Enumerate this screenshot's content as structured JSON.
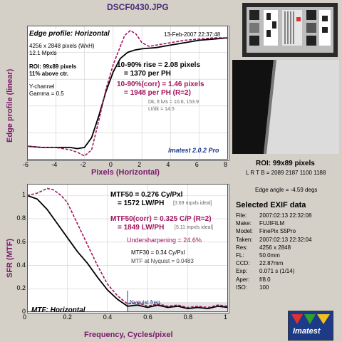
{
  "window": {
    "title": "DSCF0430.JPG"
  },
  "edge_panel": {
    "title": "Edge profile: Horizontal",
    "date": "13-Feb-2007 22:37:48",
    "info": [
      "4256 x 2848 pixels (WxH)",
      "12.1 Mpxls"
    ],
    "roi": [
      "ROI: 99x89 pixels",
      "11% above ctr."
    ],
    "channel": [
      "Y-channel",
      "Gamma = 0.5"
    ],
    "rise": [
      "10-90% rise = 2.08 pixels",
      "= 1370 per PH"
    ],
    "rise_corr": [
      "10-90%(corr) = 1.46 pixels",
      "= 1948 per PH  (R=2)"
    ],
    "dk": [
      "Dk, lt lvls = 10.6, 153.9",
      "Lt/dk = 14.5"
    ],
    "version": "Imatest 2.0.2 Pro",
    "ylabel": "Edge profile (linear)",
    "xlabel": "Pixels (Horizontal)"
  },
  "mtf_panel": {
    "title": "MTF: Horizontal",
    "mtf50": [
      "MTF50 = 0.276 Cy/Pxl",
      "= 1572 LW/PH"
    ],
    "mtf50_ideal": "[3.69 mpxls ideal]",
    "mtf50_corr": [
      "MTF50(corr) = 0.325 C/P  (R=2)",
      "= 1849 LW/PH"
    ],
    "mtf50_corr_ideal": "[5.11 mpxls ideal]",
    "undersharpening": "Undersharpening = 24.6%",
    "mtf30": "MTF30 = 0.34 Cy/Pxl",
    "nyquist_mtf": "MTF at Nyquist = 0.0483",
    "nyquist_label": "Nyquist freq.",
    "ylabel": "SFR (MTF)",
    "xlabel": "Frequency, Cycles/pixel"
  },
  "roi_info": {
    "title": "ROI: 99x89 pixels",
    "coords": "L R T B = 2089 2187  1100 1188",
    "edge_angle": "Edge angle = -4.59 degs"
  },
  "exif": {
    "title": "Selected EXIF data",
    "rows": [
      [
        "File:",
        "2007:02:13 22:32:08"
      ],
      [
        "Make:",
        "FUJIFILM"
      ],
      [
        "Model:",
        "FinePix S5Pro"
      ],
      [
        "Taken:",
        "2007:02:13 22:32:04"
      ],
      [
        "Res:",
        "4256 x 2848"
      ],
      [
        "FL:",
        "50.0mm"
      ],
      [
        "CCD:",
        "22.87mm"
      ],
      [
        "Exp:",
        "0.071 s  (1/14)"
      ],
      [
        "Aper:",
        "f/8.0"
      ],
      [
        "ISO:",
        "100"
      ]
    ]
  },
  "logo": {
    "text": "Imatest"
  },
  "colors": {
    "measured": "#000000",
    "corrected": "#a0155e",
    "label": "#7a1a6a",
    "fill_region": "#d0d0d0"
  },
  "chart_data": [
    {
      "type": "line",
      "title": "Edge profile: Horizontal",
      "xlabel": "Pixels (Horizontal)",
      "ylabel": "Edge profile (linear)",
      "xlim": [
        -6,
        8
      ],
      "ylim": [
        0,
        1.1
      ],
      "x_ticks": [
        -6,
        -4,
        -2,
        0,
        2,
        4,
        6,
        8
      ],
      "grid": true,
      "series": [
        {
          "style": "solid",
          "x": [
            -6,
            -5,
            -4,
            -3,
            -2.5,
            -2,
            -1.5,
            -1,
            -0.5,
            0,
            0.5,
            1,
            1.5,
            2,
            3,
            4,
            5,
            6,
            7,
            8
          ],
          "y": [
            0.11,
            0.1,
            0.1,
            0.1,
            0.09,
            0.1,
            0.18,
            0.36,
            0.56,
            0.72,
            0.83,
            0.88,
            0.9,
            0.91,
            0.92,
            0.94,
            0.96,
            0.98,
            0.99,
            1.0
          ]
        },
        {
          "style": "dashed",
          "x": [
            -6,
            -5,
            -4,
            -3,
            -2.5,
            -2,
            -1.5,
            -1,
            -0.5,
            0,
            0.5,
            0.8,
            1.2,
            1.6,
            2,
            2.5,
            3,
            4,
            5,
            6,
            7,
            8
          ],
          "y": [
            0.11,
            0.1,
            0.1,
            0.08,
            0.06,
            0.03,
            0.08,
            0.32,
            0.58,
            0.78,
            0.93,
            1.02,
            1.06,
            1.03,
            0.96,
            0.93,
            0.94,
            0.96,
            0.98,
            0.99,
            1.0,
            1.0
          ]
        }
      ]
    },
    {
      "type": "line",
      "title": "MTF: Horizontal",
      "xlabel": "Frequency, Cycles/pixel",
      "ylabel": "SFR (MTF)",
      "xlim": [
        0,
        1
      ],
      "ylim": [
        0,
        1.1
      ],
      "x_ticks": [
        0,
        0.2,
        0.4,
        0.6,
        0.8,
        1
      ],
      "y_ticks": [
        0,
        0.2,
        0.4,
        0.6,
        0.8,
        1
      ],
      "grid": true,
      "nyquist": 0.5,
      "series": [
        {
          "style": "solid",
          "x": [
            0,
            0.05,
            0.1,
            0.15,
            0.2,
            0.25,
            0.3,
            0.35,
            0.4,
            0.45,
            0.5,
            0.55,
            0.6,
            0.65,
            0.7,
            0.75,
            0.8,
            0.85,
            0.9,
            0.95,
            1.0
          ],
          "y": [
            1.0,
            0.97,
            0.88,
            0.76,
            0.64,
            0.52,
            0.42,
            0.3,
            0.19,
            0.11,
            0.05,
            0.06,
            0.04,
            0.06,
            0.04,
            0.05,
            0.03,
            0.04,
            0.03,
            0.05,
            0.04
          ]
        },
        {
          "style": "dashed",
          "x": [
            0,
            0.05,
            0.1,
            0.13,
            0.17,
            0.2,
            0.25,
            0.3,
            0.35,
            0.4,
            0.45,
            0.5,
            0.55,
            0.6,
            0.65,
            0.7,
            0.75,
            0.8,
            0.85,
            0.9,
            0.95,
            1.0
          ],
          "y": [
            1.0,
            1.02,
            1.06,
            1.05,
            1.0,
            0.94,
            0.76,
            0.58,
            0.4,
            0.24,
            0.14,
            0.07,
            0.08,
            0.05,
            0.07,
            0.05,
            0.06,
            0.04,
            0.05,
            0.04,
            0.06,
            0.05
          ]
        }
      ]
    }
  ]
}
